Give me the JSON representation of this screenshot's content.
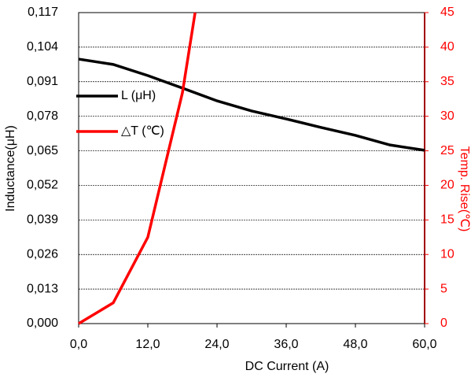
{
  "chart_data": {
    "type": "line",
    "x_label": "DC Current (A)",
    "y_label": "Inductance(μH)",
    "y2_label": "Temp. Rise(℃)",
    "xlim": [
      0,
      60
    ],
    "xticks": [
      {
        "value": 0,
        "label": "0,0"
      },
      {
        "value": 12,
        "label": "12,0"
      },
      {
        "value": 24,
        "label": "24,0"
      },
      {
        "value": 36,
        "label": "36,0"
      },
      {
        "value": 48,
        "label": "48,0"
      },
      {
        "value": 60,
        "label": "60,0"
      }
    ],
    "ylim": [
      0,
      0.117
    ],
    "yticks": [
      {
        "value": 0,
        "label": "0,000"
      },
      {
        "value": 0.013,
        "label": "0,013"
      },
      {
        "value": 0.026,
        "label": "0,026"
      },
      {
        "value": 0.039,
        "label": "0,039"
      },
      {
        "value": 0.052,
        "label": "0,052"
      },
      {
        "value": 0.065,
        "label": "0,065"
      },
      {
        "value": 0.078,
        "label": "0,078"
      },
      {
        "value": 0.091,
        "label": "0,091"
      },
      {
        "value": 0.104,
        "label": "0,104"
      },
      {
        "value": 0.117,
        "label": "0,117"
      }
    ],
    "y2lim": [
      0,
      45
    ],
    "y2ticks": [
      0,
      5,
      10,
      15,
      20,
      25,
      30,
      35,
      40,
      45
    ],
    "grid": true,
    "series": [
      {
        "name": "L (μH)",
        "color": "#000000",
        "x": [
          0,
          6,
          12,
          18,
          24,
          30,
          36,
          42,
          48,
          54,
          60
        ],
        "values": [
          0.0995,
          0.0975,
          0.0933,
          0.0886,
          0.0838,
          0.08,
          0.077,
          0.0738,
          0.0708,
          0.0672,
          0.0652
        ]
      },
      {
        "name": "△T (℃)",
        "color": "#ff0000",
        "axis": "y2",
        "x": [
          0,
          6,
          12,
          18,
          20.2
        ],
        "values": [
          0,
          3,
          12.5,
          33.4,
          45
        ]
      }
    ]
  }
}
